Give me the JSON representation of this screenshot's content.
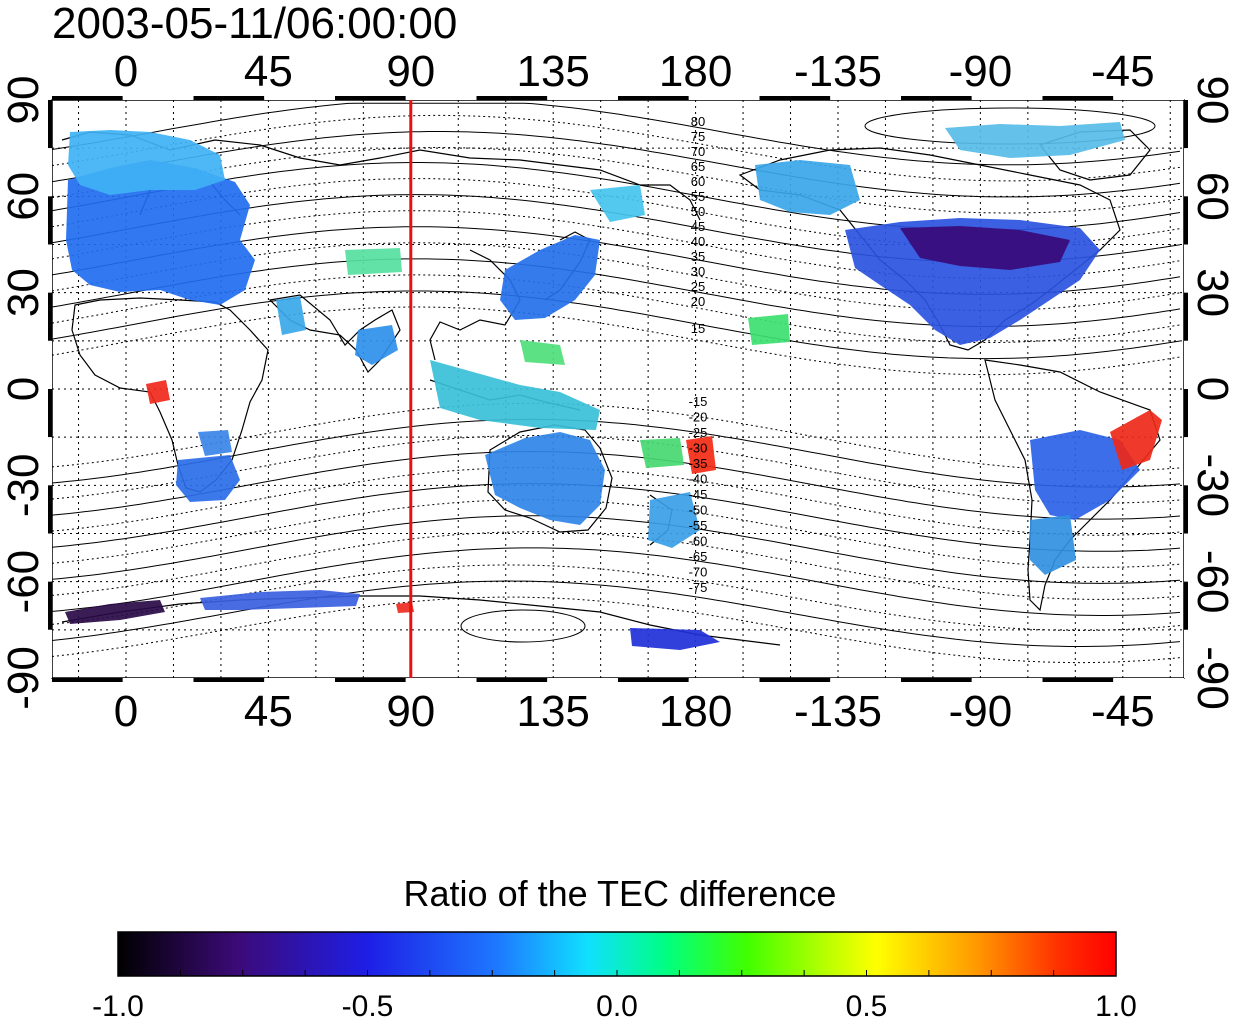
{
  "title": "2003-05-11/06:00:00",
  "map": {
    "lon_ticks": [
      "0",
      "45",
      "90",
      "135",
      "180",
      "-135",
      "-90",
      "-45"
    ],
    "lat_ticks": [
      "90",
      "60",
      "30",
      "0",
      "-30",
      "-60",
      "-90"
    ],
    "marked_longitude": 90,
    "marker_color": "#e8110f",
    "magnetic_latitude_labels_north": [
      "80",
      "75",
      "70",
      "65",
      "60",
      "55",
      "50",
      "45",
      "40",
      "35",
      "30",
      "25",
      "20",
      "15"
    ],
    "magnetic_latitude_labels_south": [
      "-15",
      "-20",
      "-25",
      "-30",
      "-35",
      "-40",
      "-45",
      "-50",
      "-55",
      "-60",
      "-65",
      "-70",
      "-75"
    ]
  },
  "colorbar": {
    "title": "Ratio of the TEC difference",
    "min": -1.0,
    "max": 1.0,
    "tick_labels": [
      "-1.0",
      "-0.5",
      "0.0",
      "0.5",
      "1.0"
    ],
    "colormap": [
      "#000000",
      "#3c0a78",
      "#2a1ee6",
      "#1e64ff",
      "#14ccff",
      "#00ff99",
      "#33ff00",
      "#b4ff00",
      "#ffff00",
      "#ffaa00",
      "#ff4400",
      "#ff0000"
    ]
  }
}
